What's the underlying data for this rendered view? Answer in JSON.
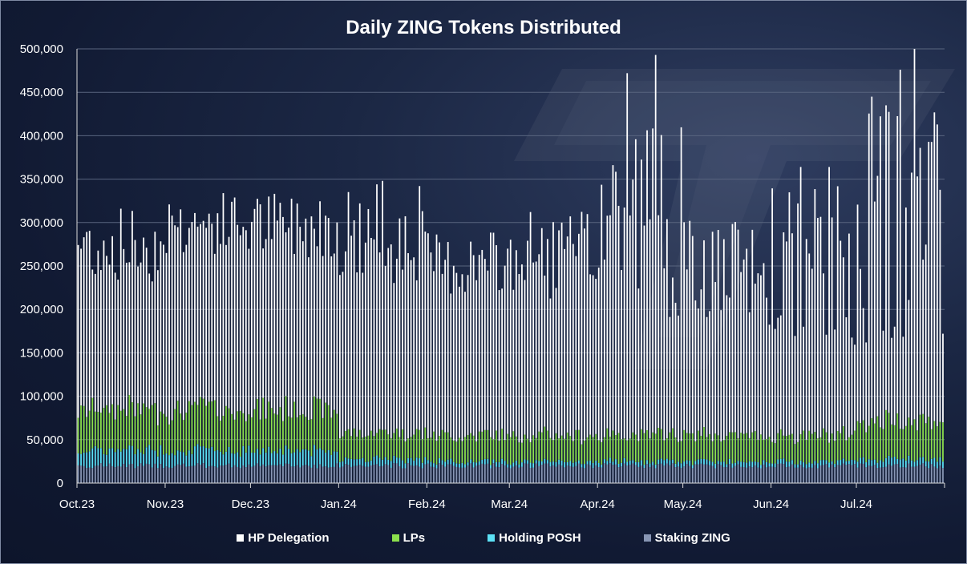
{
  "chart_data": {
    "type": "bar",
    "stacked": true,
    "title": "Daily ZING Tokens Distributed",
    "xlabel": "",
    "ylabel": "",
    "ylim": [
      0,
      500000
    ],
    "yticks": [
      "0",
      "50,000",
      "100,000",
      "150,000",
      "200,000",
      "250,000",
      "300,000",
      "350,000",
      "400,000",
      "450,000",
      "500,000"
    ],
    "months": [
      "Oct.23",
      "Nov.23",
      "Dec.23",
      "Jan.24",
      "Feb.24",
      "Mar.24",
      "Apr.24",
      "May.24",
      "Jun.24",
      "Jul.24"
    ],
    "grid": true,
    "legend_position": "bottom",
    "series": [
      {
        "name": "HP Delegation",
        "color": "#ffffff"
      },
      {
        "name": "LPs",
        "color": "#8ce04d"
      },
      {
        "name": "Holding POSH",
        "color": "#5ce1f5"
      },
      {
        "name": "Staking ZING",
        "color": "#8896b4"
      }
    ],
    "monthly_values": [
      {
        "month": "Oct.23",
        "total_range": [
          230000,
          320000
        ],
        "staking": 20000,
        "posh": 18000,
        "lps": 47000
      },
      {
        "month": "Nov.23",
        "total_range": [
          260000,
          337000
        ],
        "staking": 20000,
        "posh": 18000,
        "lps": 47000
      },
      {
        "month": "Dec.23",
        "total_range": [
          260000,
          336000
        ],
        "staking": 20000,
        "posh": 18000,
        "lps": 47000
      },
      {
        "month": "Jan.24",
        "total_range": [
          230000,
          348000
        ],
        "staking": 20000,
        "posh": 8000,
        "lps": 30000
      },
      {
        "month": "Feb.24",
        "total_range": [
          215000,
          290000
        ],
        "staking": 20000,
        "posh": 5000,
        "lps": 30000
      },
      {
        "month": "Mar.24",
        "total_range": [
          210000,
          315000
        ],
        "staking": 20000,
        "posh": 5000,
        "lps": 30000
      },
      {
        "month": "Apr.24",
        "total_range": [
          190000,
          493000
        ],
        "staking": 20000,
        "posh": 5000,
        "lps": 30000
      },
      {
        "month": "May.24",
        "total_range": [
          180000,
          303000
        ],
        "staking": 20000,
        "posh": 5000,
        "lps": 30000
      },
      {
        "month": "Jun.24",
        "total_range": [
          155000,
          364000
        ],
        "staking": 20000,
        "posh": 5000,
        "lps": 30000
      },
      {
        "month": "Jul.24",
        "total_range": [
          160000,
          500000
        ],
        "staking": 20000,
        "posh": 8000,
        "lps": 45000
      }
    ],
    "peaks": [
      {
        "month": "Jan.24",
        "value": 348000
      },
      {
        "month": "Apr.24",
        "value": 472000
      },
      {
        "month": "Apr.24",
        "value": 493000
      },
      {
        "month": "Jun.24",
        "value": 364000
      },
      {
        "month": "Jun.24",
        "value": 364000
      },
      {
        "month": "Jul.24",
        "value": 445000
      },
      {
        "month": "Jul.24",
        "value": 435000
      },
      {
        "month": "Jul.24",
        "value": 476000
      },
      {
        "month": "Jul.24",
        "value": 500000
      },
      {
        "month": "Jul.24",
        "value": 393000
      }
    ],
    "last_value": 172000
  }
}
